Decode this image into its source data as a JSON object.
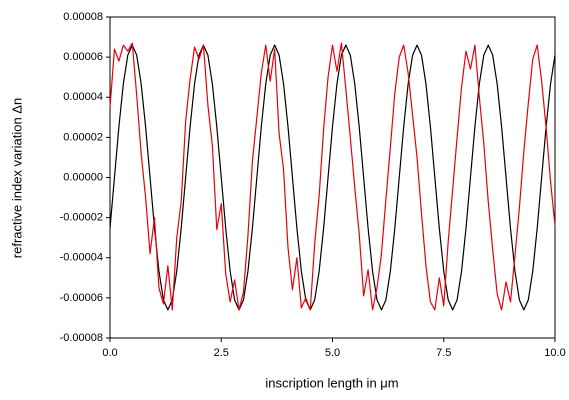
{
  "chart_data": {
    "type": "line",
    "x_label": "inscription length in μm",
    "y_label": "refractive index variation Δn",
    "x": [
      0,
      0.1,
      0.2,
      0.3,
      0.4,
      0.5,
      0.6,
      0.7,
      0.8,
      0.9,
      1,
      1.1,
      1.2,
      1.3,
      1.4,
      1.5,
      1.6,
      1.7,
      1.8,
      1.9,
      2,
      2.1,
      2.2,
      2.3,
      2.4,
      2.5,
      2.6,
      2.7,
      2.8,
      2.9,
      3,
      3.1,
      3.2,
      3.3,
      3.4,
      3.5,
      3.6,
      3.7,
      3.8,
      3.9,
      4,
      4.1,
      4.2,
      4.3,
      4.4,
      4.5,
      4.6,
      4.7,
      4.8,
      4.9,
      5,
      5.1,
      5.2,
      5.3,
      5.4,
      5.5,
      5.6,
      5.7,
      5.8,
      5.9,
      6,
      6.1,
      6.2,
      6.3,
      6.4,
      6.5,
      6.6,
      6.7,
      6.8,
      6.9,
      7,
      7.1,
      7.2,
      7.3,
      7.4,
      7.5,
      7.6,
      7.7,
      7.8,
      7.9,
      8,
      8.1,
      8.2,
      8.3,
      8.4,
      8.5,
      8.6,
      8.7,
      8.8,
      8.9,
      9,
      9.1,
      9.2,
      9.3,
      9.4,
      9.5,
      9.6,
      9.7,
      9.8,
      9.9,
      10
    ],
    "series": [
      {
        "color": "#000000",
        "values": [
          -2.53e-05,
          0,
          2.53e-05,
          4.67e-05,
          6.1e-05,
          6.6e-05,
          6.1e-05,
          4.67e-05,
          2.53e-05,
          0,
          -2.53e-05,
          -4.67e-05,
          -6.1e-05,
          -6.6e-05,
          -6.1e-05,
          -4.67e-05,
          -2.53e-05,
          0,
          2.53e-05,
          4.67e-05,
          6.1e-05,
          6.6e-05,
          6.1e-05,
          4.67e-05,
          2.53e-05,
          0,
          -2.53e-05,
          -4.67e-05,
          -6.1e-05,
          -6.6e-05,
          -6.1e-05,
          -4.67e-05,
          -2.53e-05,
          0,
          2.53e-05,
          4.67e-05,
          6.1e-05,
          6.6e-05,
          6.1e-05,
          4.67e-05,
          2.53e-05,
          0,
          -2.53e-05,
          -4.67e-05,
          -6.1e-05,
          -6.6e-05,
          -6.1e-05,
          -4.67e-05,
          -2.53e-05,
          0,
          2.53e-05,
          4.67e-05,
          6.1e-05,
          6.6e-05,
          6.1e-05,
          4.67e-05,
          2.53e-05,
          0,
          -2.53e-05,
          -4.67e-05,
          -6.1e-05,
          -6.6e-05,
          -6.1e-05,
          -4.67e-05,
          -2.53e-05,
          0,
          2.53e-05,
          4.67e-05,
          6.1e-05,
          6.6e-05,
          6.1e-05,
          4.67e-05,
          2.53e-05,
          0,
          -2.53e-05,
          -4.67e-05,
          -6.1e-05,
          -6.6e-05,
          -6.1e-05,
          -4.67e-05,
          -2.53e-05,
          0,
          2.53e-05,
          4.67e-05,
          6.1e-05,
          6.6e-05,
          6.1e-05,
          4.67e-05,
          2.53e-05,
          0,
          -2.53e-05,
          -4.67e-05,
          -6.1e-05,
          -6.6e-05,
          -6.1e-05,
          -4.67e-05,
          -2.53e-05,
          0,
          2.53e-05,
          4.67e-05,
          6.1e-05
        ]
      },
      {
        "color": "#e8000b",
        "values": [
          3.5e-05,
          6.4e-05,
          5.8e-05,
          6.6e-05,
          6.3e-05,
          6.7e-05,
          4.1e-05,
          1.2e-05,
          -1e-05,
          -3.8e-05,
          -2e-05,
          -5.5e-05,
          -6.3e-05,
          -4.4e-05,
          -6.6e-05,
          -3e-05,
          -1.2e-05,
          2.8e-05,
          4.9e-05,
          6.5e-05,
          5.9e-05,
          6.6e-05,
          3.6e-05,
          1.6e-05,
          -2.6e-05,
          -1.3e-05,
          -4.8e-05,
          -6.2e-05,
          -5.1e-05,
          -6.6e-05,
          -5.7e-05,
          -2.9e-05,
          8e-06,
          3e-05,
          5.2e-05,
          6.6e-05,
          4.8e-05,
          6.4e-05,
          2.2e-05,
          4e-06,
          -3.5e-05,
          -5.6e-05,
          -4e-05,
          -6.5e-05,
          -6e-05,
          -6.6e-05,
          -3.3e-05,
          -9e-06,
          2.4e-05,
          5e-05,
          6.6e-05,
          5.3e-05,
          6.7e-05,
          4.4e-05,
          2e-05,
          -5e-06,
          -2.8e-05,
          -5.9e-05,
          -4.6e-05,
          -6.6e-05,
          -5.5e-05,
          -3.8e-05,
          -1.1e-05,
          1.5e-05,
          4.2e-05,
          6e-05,
          6.6e-05,
          5.2e-05,
          3.1e-05,
          1e-05,
          -1.8e-05,
          -4.4e-05,
          -6.2e-05,
          -6.6e-05,
          -5e-05,
          -6.4e-05,
          -3.2e-05,
          -6e-06,
          2e-05,
          4.5e-05,
          6.3e-05,
          5.4e-05,
          6.6e-05,
          4e-05,
          1.7e-05,
          -1.2e-05,
          -3.6e-05,
          -5.8e-05,
          -6.6e-05,
          -5.2e-05,
          -6.2e-05,
          -3.9e-05,
          -1.5e-05,
          1.3e-05,
          3.7e-05,
          5.9e-05,
          6.6e-05,
          4.8e-05,
          2.5e-05,
          -2e-06,
          -2.4e-05
        ]
      }
    ],
    "xlim": [
      0,
      10
    ],
    "xticks": [
      {
        "value": 0,
        "label": "0.0"
      },
      2.5,
      {
        "value": 5,
        "label": "5.0"
      },
      7.5,
      {
        "value": 10,
        "label": "10.0"
      }
    ],
    "ylim": [
      -8e-05,
      8e-05
    ],
    "yticks": [
      -8e-05,
      -6e-05,
      -4e-05,
      -2e-05,
      {
        "value": 0,
        "label": "0.00000"
      },
      2e-05,
      4e-05,
      6e-05,
      8e-05
    ]
  }
}
